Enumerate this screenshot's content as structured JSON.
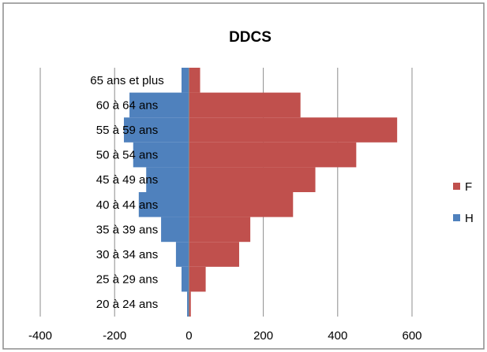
{
  "chart_data": {
    "type": "bar",
    "orientation": "horizontal",
    "layout": "population-pyramid",
    "title": "DDCS",
    "categories": [
      "65 ans et plus",
      "60 à 64 ans",
      "55 à 59 ans",
      "50 à 54 ans",
      "45 à 49 ans",
      "40 à 44 ans",
      "35 à 39 ans",
      "30 à 34 ans",
      "25 à 29 ans",
      "20 à 24 ans"
    ],
    "series": [
      {
        "name": "F",
        "color": "#c0504d",
        "values": [
          30,
          300,
          560,
          450,
          340,
          280,
          165,
          135,
          45,
          5
        ]
      },
      {
        "name": "H",
        "color": "#4f81bd",
        "values": [
          -20,
          -160,
          -175,
          -150,
          -115,
          -135,
          -75,
          -35,
          -20,
          -5
        ]
      }
    ],
    "xlim": [
      -400,
      600
    ],
    "xticks": [
      "-400",
      "-200",
      "0",
      "200",
      "400",
      "600"
    ],
    "xtick_values": [
      -400,
      -200,
      0,
      200,
      400,
      600
    ],
    "grid": "vertical",
    "legend": "right",
    "legend_order": [
      "F",
      "H"
    ]
  }
}
